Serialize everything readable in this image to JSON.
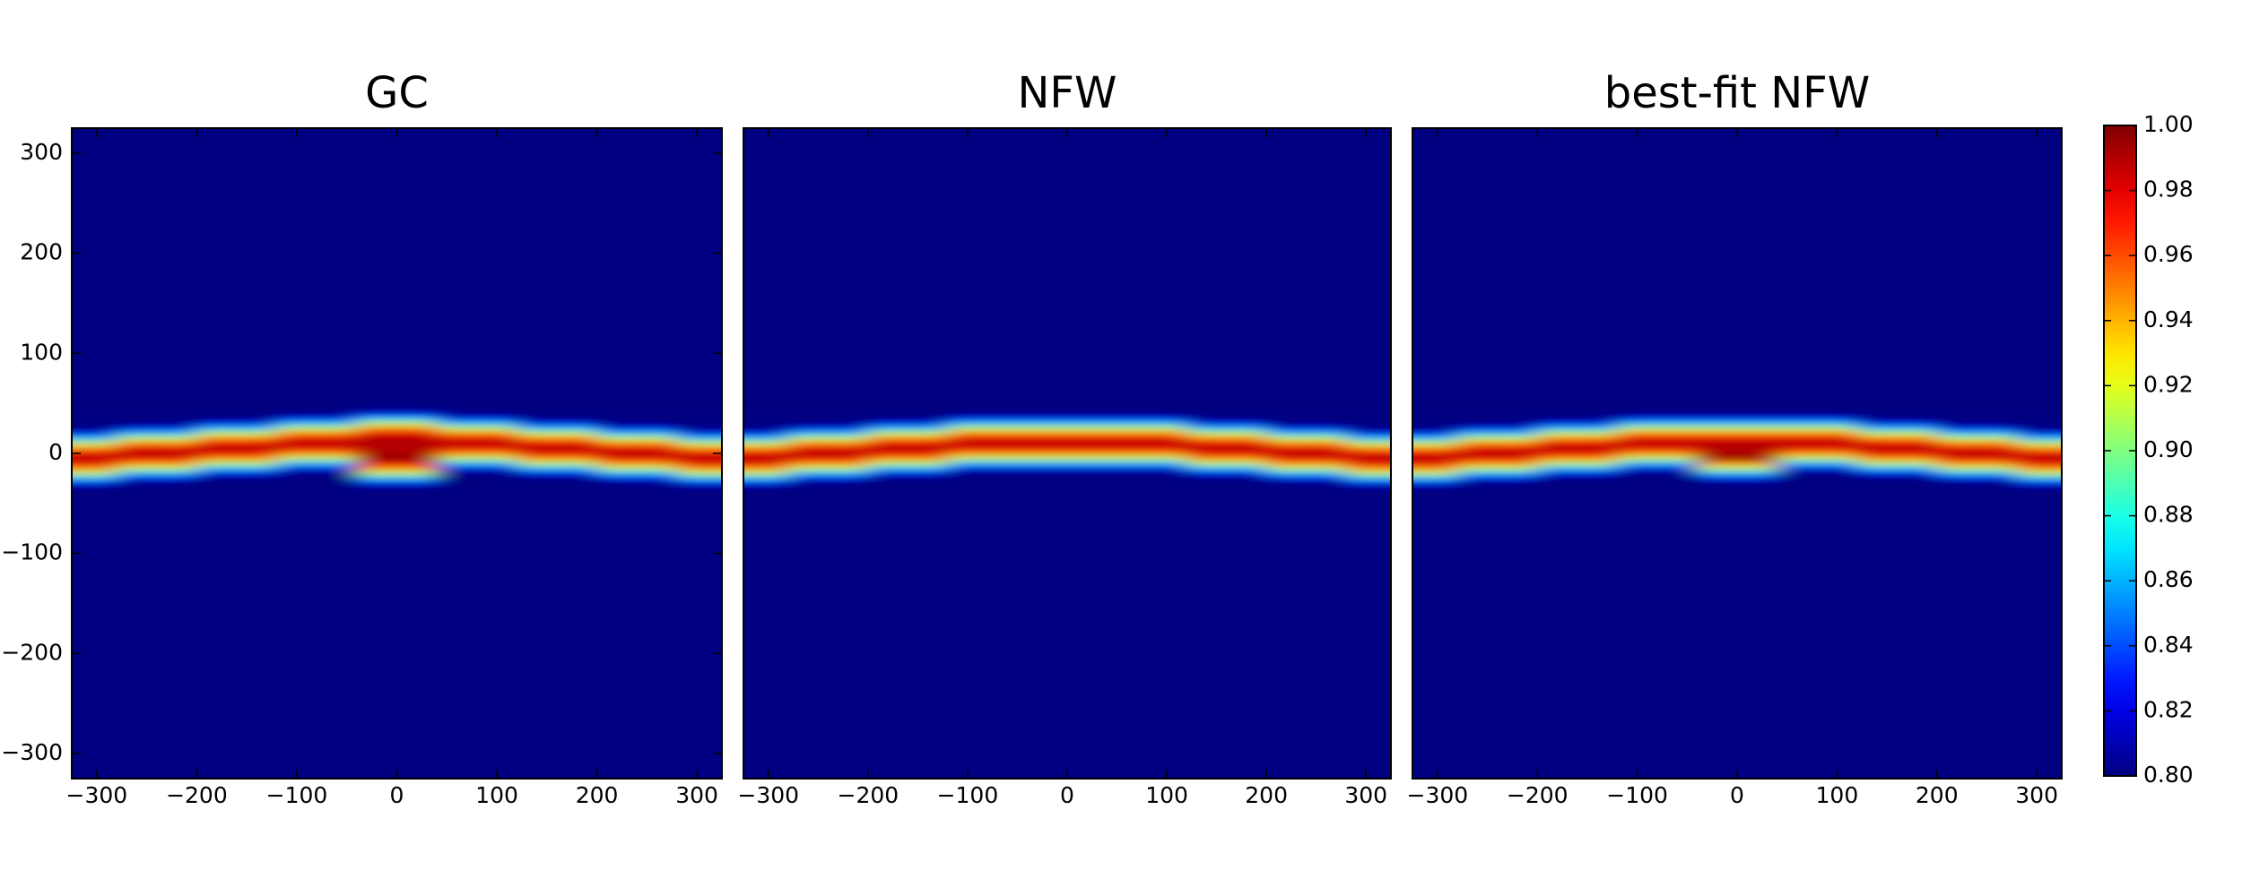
{
  "chart_data": [
    {
      "type": "heatmap",
      "title": "GC",
      "xlim": [
        -325,
        325
      ],
      "ylim": [
        -325,
        325
      ],
      "xticks": [
        {
          "value": -300,
          "label": "−300"
        },
        {
          "value": -200,
          "label": "−200"
        },
        {
          "value": -100,
          "label": "−100"
        },
        0,
        100,
        200,
        300
      ],
      "yticks": [
        {
          "value": -300,
          "label": "−300"
        },
        {
          "value": -200,
          "label": "−200"
        },
        {
          "value": -100,
          "label": "−100"
        },
        0,
        100,
        200,
        300
      ],
      "x": [
        -320,
        -240,
        -160,
        -80,
        0,
        80,
        160,
        240,
        320
      ],
      "y": [
        40,
        35,
        30,
        25,
        20,
        15,
        10,
        5,
        0,
        -5,
        -10,
        -15,
        -20,
        -25,
        -30,
        -35,
        -40
      ],
      "z": [
        [
          0.8,
          0.8,
          0.8,
          0.8,
          0.82,
          0.8,
          0.8,
          0.8,
          0.8
        ],
        [
          0.8,
          0.8,
          0.8,
          0.82,
          0.86,
          0.82,
          0.8,
          0.8,
          0.8
        ],
        [
          0.8,
          0.8,
          0.82,
          0.86,
          0.91,
          0.86,
          0.82,
          0.8,
          0.8
        ],
        [
          0.8,
          0.82,
          0.86,
          0.91,
          0.95,
          0.91,
          0.86,
          0.82,
          0.8
        ],
        [
          0.82,
          0.86,
          0.91,
          0.95,
          0.98,
          0.95,
          0.91,
          0.86,
          0.82
        ],
        [
          0.86,
          0.91,
          0.95,
          0.98,
          0.99,
          0.98,
          0.95,
          0.91,
          0.86
        ],
        [
          0.91,
          0.95,
          0.98,
          0.99,
          0.99,
          0.99,
          0.98,
          0.95,
          0.91
        ],
        [
          0.95,
          0.98,
          0.99,
          0.98,
          0.99,
          0.98,
          0.99,
          0.98,
          0.95
        ],
        [
          0.98,
          0.99,
          0.98,
          0.95,
          0.99,
          0.95,
          0.98,
          0.99,
          0.98
        ],
        [
          0.99,
          0.98,
          0.95,
          0.91,
          1.0,
          0.91,
          0.95,
          0.98,
          0.99
        ],
        [
          0.98,
          0.95,
          0.91,
          0.86,
          0.98,
          0.86,
          0.91,
          0.95,
          0.98
        ],
        [
          0.95,
          0.91,
          0.86,
          0.82,
          0.95,
          0.82,
          0.86,
          0.91,
          0.95
        ],
        [
          0.91,
          0.86,
          0.82,
          0.8,
          0.91,
          0.8,
          0.82,
          0.86,
          0.91
        ],
        [
          0.86,
          0.82,
          0.8,
          0.8,
          0.86,
          0.8,
          0.8,
          0.82,
          0.86
        ],
        [
          0.82,
          0.8,
          0.8,
          0.8,
          0.82,
          0.8,
          0.8,
          0.8,
          0.82
        ],
        [
          0.8,
          0.8,
          0.8,
          0.8,
          0.8,
          0.8,
          0.8,
          0.8,
          0.8
        ],
        [
          0.8,
          0.8,
          0.8,
          0.8,
          0.8,
          0.8,
          0.8,
          0.8,
          0.8
        ]
      ]
    },
    {
      "type": "heatmap",
      "title": "NFW",
      "xlim": [
        -325,
        325
      ],
      "ylim": [
        -325,
        325
      ],
      "xticks": [
        {
          "value": -300,
          "label": "−300"
        },
        {
          "value": -200,
          "label": "−200"
        },
        {
          "value": -100,
          "label": "−100"
        },
        0,
        100,
        200,
        300
      ],
      "x": [
        -320,
        -240,
        -160,
        -80,
        0,
        80,
        160,
        240,
        320
      ],
      "y": [
        40,
        35,
        30,
        25,
        20,
        15,
        10,
        5,
        0,
        -5,
        -10,
        -15,
        -20,
        -25,
        -30,
        -35,
        -40
      ],
      "z": [
        [
          0.8,
          0.8,
          0.8,
          0.8,
          0.8,
          0.8,
          0.8,
          0.8,
          0.8
        ],
        [
          0.8,
          0.8,
          0.8,
          0.82,
          0.82,
          0.82,
          0.8,
          0.8,
          0.8
        ],
        [
          0.8,
          0.8,
          0.82,
          0.86,
          0.86,
          0.86,
          0.82,
          0.8,
          0.8
        ],
        [
          0.8,
          0.82,
          0.86,
          0.91,
          0.91,
          0.91,
          0.86,
          0.82,
          0.8
        ],
        [
          0.82,
          0.86,
          0.91,
          0.95,
          0.95,
          0.95,
          0.91,
          0.86,
          0.82
        ],
        [
          0.86,
          0.91,
          0.95,
          0.98,
          0.98,
          0.98,
          0.95,
          0.91,
          0.86
        ],
        [
          0.91,
          0.95,
          0.98,
          0.99,
          0.99,
          0.99,
          0.98,
          0.95,
          0.91
        ],
        [
          0.95,
          0.98,
          0.99,
          0.98,
          0.98,
          0.98,
          0.99,
          0.98,
          0.95
        ],
        [
          0.98,
          0.99,
          0.98,
          0.95,
          0.95,
          0.95,
          0.98,
          0.99,
          0.98
        ],
        [
          0.99,
          0.98,
          0.95,
          0.91,
          0.91,
          0.91,
          0.95,
          0.98,
          0.99
        ],
        [
          0.98,
          0.95,
          0.91,
          0.86,
          0.86,
          0.86,
          0.91,
          0.95,
          0.98
        ],
        [
          0.95,
          0.91,
          0.86,
          0.82,
          0.82,
          0.82,
          0.86,
          0.91,
          0.95
        ],
        [
          0.91,
          0.86,
          0.82,
          0.8,
          0.8,
          0.8,
          0.82,
          0.86,
          0.91
        ],
        [
          0.86,
          0.82,
          0.8,
          0.8,
          0.8,
          0.8,
          0.8,
          0.82,
          0.86
        ],
        [
          0.82,
          0.8,
          0.8,
          0.8,
          0.8,
          0.8,
          0.8,
          0.8,
          0.82
        ],
        [
          0.8,
          0.8,
          0.8,
          0.8,
          0.8,
          0.8,
          0.8,
          0.8,
          0.8
        ],
        [
          0.8,
          0.8,
          0.8,
          0.8,
          0.8,
          0.8,
          0.8,
          0.8,
          0.8
        ]
      ]
    },
    {
      "type": "heatmap",
      "title": "best-fit NFW",
      "xlim": [
        -325,
        325
      ],
      "ylim": [
        -325,
        325
      ],
      "xticks": [
        {
          "value": -300,
          "label": "−300"
        },
        {
          "value": -200,
          "label": "−200"
        },
        {
          "value": -100,
          "label": "−100"
        },
        0,
        100,
        200,
        300
      ],
      "x": [
        -320,
        -240,
        -160,
        -80,
        0,
        80,
        160,
        240,
        320
      ],
      "y": [
        40,
        35,
        30,
        25,
        20,
        15,
        10,
        5,
        0,
        -5,
        -10,
        -15,
        -20,
        -25,
        -30,
        -35,
        -40
      ],
      "z": [
        [
          0.8,
          0.8,
          0.8,
          0.8,
          0.8,
          0.8,
          0.8,
          0.8,
          0.8
        ],
        [
          0.8,
          0.8,
          0.8,
          0.82,
          0.82,
          0.82,
          0.8,
          0.8,
          0.8
        ],
        [
          0.8,
          0.8,
          0.82,
          0.86,
          0.86,
          0.86,
          0.82,
          0.8,
          0.8
        ],
        [
          0.8,
          0.82,
          0.86,
          0.91,
          0.91,
          0.91,
          0.86,
          0.82,
          0.8
        ],
        [
          0.82,
          0.86,
          0.91,
          0.95,
          0.95,
          0.95,
          0.91,
          0.86,
          0.82
        ],
        [
          0.86,
          0.91,
          0.95,
          0.98,
          0.98,
          0.98,
          0.95,
          0.91,
          0.86
        ],
        [
          0.91,
          0.95,
          0.98,
          0.99,
          0.99,
          0.99,
          0.98,
          0.95,
          0.91
        ],
        [
          0.95,
          0.98,
          0.99,
          0.98,
          0.99,
          0.98,
          0.99,
          0.98,
          0.95
        ],
        [
          0.98,
          0.99,
          0.98,
          0.95,
          0.99,
          0.95,
          0.98,
          0.99,
          0.98
        ],
        [
          0.99,
          0.98,
          0.95,
          0.91,
          1.0,
          0.91,
          0.95,
          0.98,
          0.99
        ],
        [
          0.98,
          0.95,
          0.91,
          0.86,
          0.95,
          0.86,
          0.91,
          0.95,
          0.98
        ],
        [
          0.95,
          0.91,
          0.86,
          0.82,
          0.91,
          0.82,
          0.86,
          0.91,
          0.95
        ],
        [
          0.91,
          0.86,
          0.82,
          0.8,
          0.86,
          0.8,
          0.82,
          0.86,
          0.91
        ],
        [
          0.86,
          0.82,
          0.8,
          0.8,
          0.82,
          0.8,
          0.8,
          0.82,
          0.86
        ],
        [
          0.82,
          0.8,
          0.8,
          0.8,
          0.8,
          0.8,
          0.8,
          0.8,
          0.82
        ],
        [
          0.8,
          0.8,
          0.8,
          0.8,
          0.8,
          0.8,
          0.8,
          0.8,
          0.8
        ],
        [
          0.8,
          0.8,
          0.8,
          0.8,
          0.8,
          0.8,
          0.8,
          0.8,
          0.8
        ]
      ]
    },
    {
      "type": "colorbar",
      "colormap": "jet",
      "clim": [
        0.8,
        1.0
      ],
      "cticks": [
        {
          "value": 0.8,
          "label": "0.80"
        },
        0.82,
        0.84,
        0.86,
        0.88,
        {
          "value": 0.9,
          "label": "0.90"
        },
        0.92,
        0.94,
        0.96,
        0.98,
        {
          "value": 1.0,
          "label": "1.00"
        }
      ]
    }
  ]
}
